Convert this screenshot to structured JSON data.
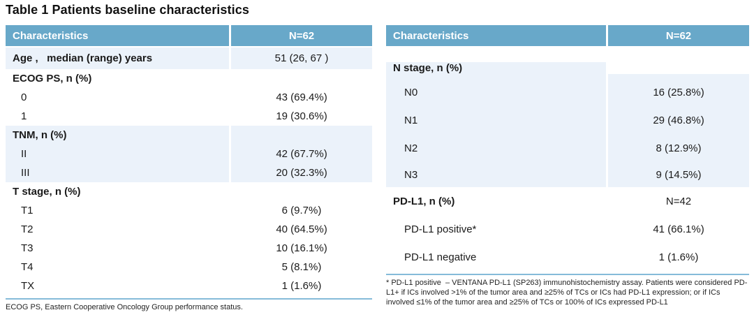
{
  "title": "Table 1 Patients baseline characteristics",
  "colors": {
    "header_bg": "#68a8c9",
    "header_text": "#ffffff",
    "shaded_row_bg": "#ebf2fa",
    "divider_line": "#85bbd9",
    "body_text": "#1a1a1a"
  },
  "left_table": {
    "header": {
      "characteristics": "Characteristics",
      "n": "N=62"
    },
    "sections": [
      {
        "shaded": true,
        "rows": [
          {
            "label": "Age ,   median (range) years",
            "value": "51 (26, 67 )"
          }
        ]
      },
      {
        "shaded": false,
        "rows": [
          {
            "label": "ECOG PS, n (%)",
            "value": ""
          },
          {
            "label": "0",
            "value": "43 (69.4%)"
          },
          {
            "label": "1",
            "value": "19 (30.6%)"
          }
        ]
      },
      {
        "shaded": true,
        "rows": [
          {
            "label": "TNM, n (%)",
            "value": ""
          },
          {
            "label": "II",
            "value": "42 (67.7%)"
          },
          {
            "label": "III",
            "value": "20 (32.3%)"
          }
        ]
      },
      {
        "shaded": false,
        "rows": [
          {
            "label": "T stage, n (%)",
            "value": ""
          },
          {
            "label": "T1",
            "value": "6 (9.7%)"
          },
          {
            "label": "T2",
            "value": "40 (64.5%)"
          },
          {
            "label": "T3",
            "value": "10 (16.1%)"
          },
          {
            "label": "T4",
            "value": "5 (8.1%)"
          },
          {
            "label": "TX",
            "value": "1 (1.6%)"
          }
        ]
      }
    ],
    "footnote": "ECOG PS, Eastern Cooperative Oncology Group performance status."
  },
  "right_table": {
    "header": {
      "characteristics": "Characteristics",
      "n": "N=62"
    },
    "sections": [
      {
        "shaded": true,
        "rows": [
          {
            "label": "N stage, n (%)",
            "value": ""
          },
          {
            "label": "N0",
            "value": "16 (25.8%)"
          },
          {
            "label": "N1",
            "value": "29 (46.8%)"
          },
          {
            "label": "N2",
            "value": "8 (12.9%)"
          },
          {
            "label": "N3",
            "value": "9 (14.5%)"
          }
        ]
      },
      {
        "shaded": false,
        "rows": [
          {
            "label": "PD-L1, n (%)",
            "value": "N=42"
          },
          {
            "label": "PD-L1 positive*",
            "value": "41 (66.1%)"
          },
          {
            "label": "PD-L1 negative",
            "value": "1 (1.6%)"
          }
        ]
      }
    ],
    "footnote": "* PD-L1 positive  – VENTANA PD-L1 (SP263) immunohistochemistry assay. Patients were considered PD-L1+ if ICs involved >1% of the tumor area and ≥25% of TCs or ICs had PD-L1 expression; or if ICs involved ≤1% of the tumor area and ≥25% of TCs or 100% of ICs expressed PD-L1"
  }
}
